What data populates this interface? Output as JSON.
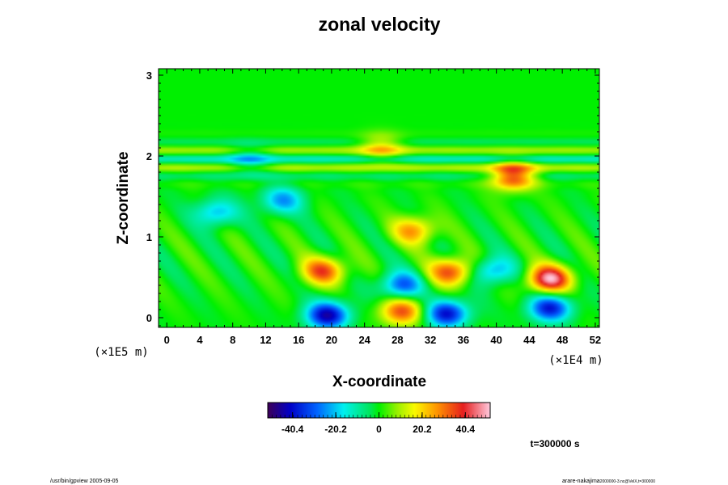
{
  "chart_data": {
    "type": "heatmap",
    "title": "zonal velocity",
    "xlabel": "X-coordinate",
    "ylabel": "Z-coordinate",
    "x_scale_note": "(×1E4 m)",
    "y_scale_note": "(×1E5 m)",
    "xlim": [
      -1,
      52.5
    ],
    "ylim": [
      -0.12,
      3.08
    ],
    "x_ticks": [
      "0",
      "4",
      "8",
      "12",
      "16",
      "20",
      "24",
      "28",
      "32",
      "36",
      "40",
      "44",
      "48",
      "52"
    ],
    "x_tick_values": [
      0,
      4,
      8,
      12,
      16,
      20,
      24,
      28,
      32,
      36,
      40,
      44,
      48,
      52
    ],
    "y_ticks": [
      "0",
      "1",
      "2",
      "3"
    ],
    "y_tick_values": [
      0,
      1,
      2,
      3
    ],
    "colorbar": {
      "min": -52,
      "max": 52,
      "tick_labels": [
        "-40.4",
        "-20.2",
        "0",
        "20.2",
        "40.4"
      ],
      "tick_values": [
        -40.4,
        -20.2,
        0,
        20.2,
        40.4
      ]
    },
    "time_label": "t=300000 s",
    "features": [
      {
        "x": 19,
        "z": 0.58,
        "value": 34,
        "note": "positive cell"
      },
      {
        "x": 34.5,
        "z": 0.57,
        "value": 36
      },
      {
        "x": 46.5,
        "z": 0.48,
        "value": 48
      },
      {
        "x": 28.5,
        "z": 0.08,
        "value": 34
      },
      {
        "x": 30,
        "z": 1.08,
        "value": 26
      },
      {
        "x": 19.5,
        "z": 0.03,
        "value": -44
      },
      {
        "x": 34,
        "z": 0.05,
        "value": -40
      },
      {
        "x": 46.5,
        "z": 0.12,
        "value": -38
      },
      {
        "x": 28.5,
        "z": 0.4,
        "value": -30
      },
      {
        "x": 39.5,
        "z": 0.58,
        "value": -24
      },
      {
        "x": 14,
        "z": 1.45,
        "value": -24
      },
      {
        "x": 6,
        "z": 1.3,
        "value": -22
      },
      {
        "x": 42,
        "z": 1.75,
        "value": 38
      },
      {
        "x": 10,
        "z": 1.95,
        "value": -14
      },
      {
        "x": 26,
        "z": 2.1,
        "value": 18
      }
    ]
  },
  "footer": {
    "left": "/usr/bin/gpview 2005-09-05",
    "right": "arare-nakajima",
    "right_small": "2000000-3.nc@VelX,t=300000"
  }
}
